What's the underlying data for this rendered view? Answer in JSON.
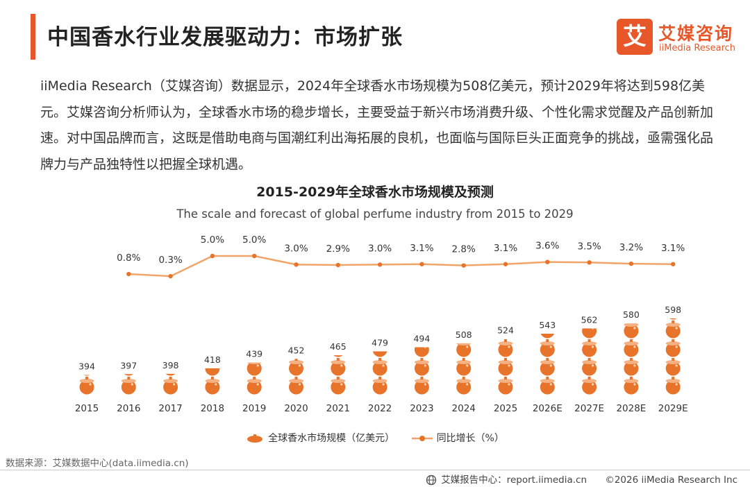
{
  "page": {
    "title": "中国香水行业发展驱动力：市场扩张",
    "accent": "#e8572a"
  },
  "logo": {
    "mark": "艾",
    "cn": "艾媒咨询",
    "en": "iiMedia Research"
  },
  "paragraph": "iiMedia Research（艾媒咨询）数据显示，2024年全球香水市场规模为508亿美元，预计2029年将达到598亿美元。艾媒咨询分析师认为，全球香水市场的稳步增长，主要受益于新兴市场消费升级、个性化需求觉醒及产品创新加速。对中国品牌而言，这既是借助电商与国潮红利出海拓展的良机，也面临与国际巨头正面竞争的挑战，亟需强化品牌力与产品独特性以把握全球机遇。",
  "chart_data": {
    "type": "bar+line",
    "title": "2015-2029年全球香水市场规模及预测",
    "subtitle": "The scale and forecast of global perfume industry from 2015 to 2029",
    "categories": [
      "2015",
      "2016",
      "2017",
      "2018",
      "2019",
      "2020",
      "2021",
      "2022",
      "2023",
      "2024",
      "2025",
      "2026E",
      "2027E",
      "2028E",
      "2029E"
    ],
    "series": [
      {
        "name": "全球香水市场规模（亿美元）",
        "type": "pictorial-bar",
        "values": [
          394,
          397,
          398,
          418,
          439,
          452,
          465,
          479,
          494,
          508,
          524,
          543,
          562,
          580,
          598
        ],
        "labels": [
          "394",
          "397",
          "398",
          "418",
          "439",
          "452",
          "465",
          "479",
          "494",
          "508",
          "524",
          "543",
          "562",
          "580",
          "598"
        ]
      },
      {
        "name": "同比增长（%）",
        "type": "line",
        "values": [
          null,
          0.8,
          0.3,
          5.0,
          5.0,
          3.0,
          2.9,
          3.0,
          3.1,
          2.8,
          3.1,
          3.6,
          3.5,
          3.2,
          3.1
        ],
        "labels": [
          "",
          "0.8%",
          "0.3%",
          "5.0%",
          "5.0%",
          "3.0%",
          "2.9%",
          "3.0%",
          "3.1%",
          "2.8%",
          "3.1%",
          "3.6%",
          "3.5%",
          "3.2%",
          "3.1%"
        ]
      }
    ],
    "colors": {
      "bar": "#e8732a",
      "bar_light": "#f4b183",
      "line": "#f0a468",
      "marker": "#e8732a"
    }
  },
  "legend": {
    "bar_label": "全球香水市场规模（亿美元）",
    "line_label": "同比增长（%）"
  },
  "footer": {
    "source": "数据来源：艾媒数据中心(data.iimedia.cn)",
    "report_center": "艾媒报告中心：report.iimedia.cn",
    "copyright": "©2026 iiMedia Research Inc"
  }
}
